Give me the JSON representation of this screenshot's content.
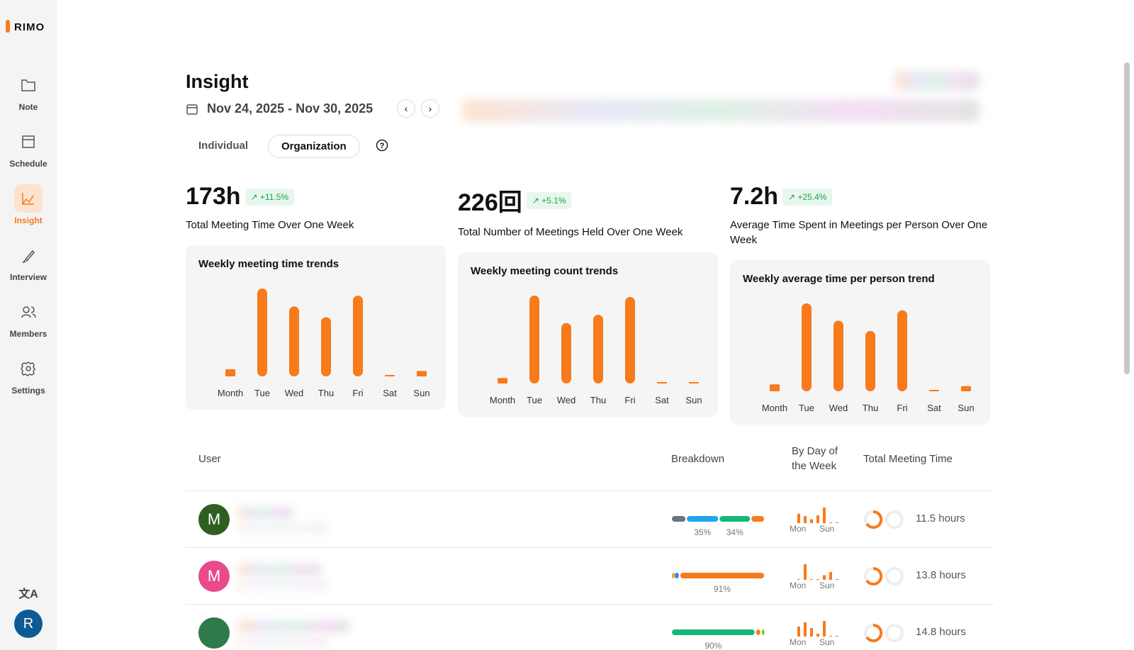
{
  "sidebar": {
    "logo": "RIMO",
    "nav": [
      "Note",
      "Schedule",
      "Insight",
      "Interview",
      "Members",
      "Settings"
    ],
    "active": 2,
    "avatar": "R"
  },
  "header": {
    "title": "Insight",
    "date_range": "Nov 24, 2025 - Nov 30, 2025",
    "tabs": [
      "Individual",
      "Organization"
    ],
    "active_tab": 1
  },
  "stats": [
    {
      "value": "173h",
      "change": "+11.5%",
      "label": "Total Meeting Time Over One Week"
    },
    {
      "value": "226回",
      "change": "+5.1%",
      "label": "Total Number of Meetings Held Over One Week"
    },
    {
      "value": "7.2h",
      "change": "+25.4%",
      "label": "Average Time Spent in Meetings per Person Over One Week"
    }
  ],
  "charts": [
    {
      "type": "bar",
      "title": "Weekly meeting time trends",
      "color": "#f77a1c",
      "categories": [
        "Month",
        "Tue",
        "Wed",
        "Thu",
        "Fri",
        "Sat",
        "Sun"
      ],
      "values": [
        4,
        49,
        39,
        33,
        45,
        0,
        3
      ]
    },
    {
      "type": "bar",
      "title": "Weekly meeting count trends",
      "color": "#f77a1c",
      "categories": [
        "Month",
        "Tue",
        "Wed",
        "Thu",
        "Fri",
        "Sat",
        "Sun"
      ],
      "values": [
        4,
        64,
        44,
        50,
        63,
        0,
        1
      ]
    },
    {
      "type": "bar",
      "title": "Weekly average time per person trend",
      "color": "#f77a1c",
      "categories": [
        "Month",
        "Tue",
        "Wed",
        "Thu",
        "Fri",
        "Sat",
        "Sun"
      ],
      "values": [
        0.4,
        5.1,
        4.1,
        3.5,
        4.7,
        0,
        0.3
      ]
    }
  ],
  "table": {
    "columns": [
      "User",
      "Breakdown",
      "By Day of the Week",
      "Total Meeting Time"
    ],
    "day_axis": [
      "Mon",
      "Sun"
    ],
    "rows": [
      {
        "avatar": "M",
        "avatar_color": "#2f5f1f",
        "breakdown": {
          "values": [
            16,
            35,
            34,
            15
          ],
          "colors": [
            "#6b7280",
            "#1ea7f0",
            "#16b87a",
            "#f77a1c"
          ],
          "value_labels": [
            null,
            "35%",
            "34%",
            null
          ]
        },
        "days": [
          12,
          9,
          5,
          10,
          20,
          0,
          0
        ],
        "total": "11.5 hours"
      },
      {
        "avatar": "M",
        "avatar_color": "#e84a8a",
        "breakdown": {
          "values": [
            3,
            6,
            91
          ],
          "colors": [
            "#f5a623",
            "#3b82f6",
            "#f77a1c"
          ],
          "value_labels": [
            null,
            null,
            "91%"
          ]
        },
        "days": [
          0,
          20,
          0,
          0,
          6,
          10,
          0
        ],
        "total": "13.8 hours"
      },
      {
        "avatar": "",
        "avatar_color": "#2f7a4a",
        "breakdown": {
          "values": [
            90,
            6,
            4
          ],
          "colors": [
            "#16b87a",
            "#f77a1c",
            "#84cc16"
          ],
          "value_labels": [
            "90%",
            null,
            null
          ]
        },
        "days": [
          14,
          20,
          12,
          4,
          22,
          0,
          0
        ],
        "total": "14.8 hours"
      }
    ]
  }
}
